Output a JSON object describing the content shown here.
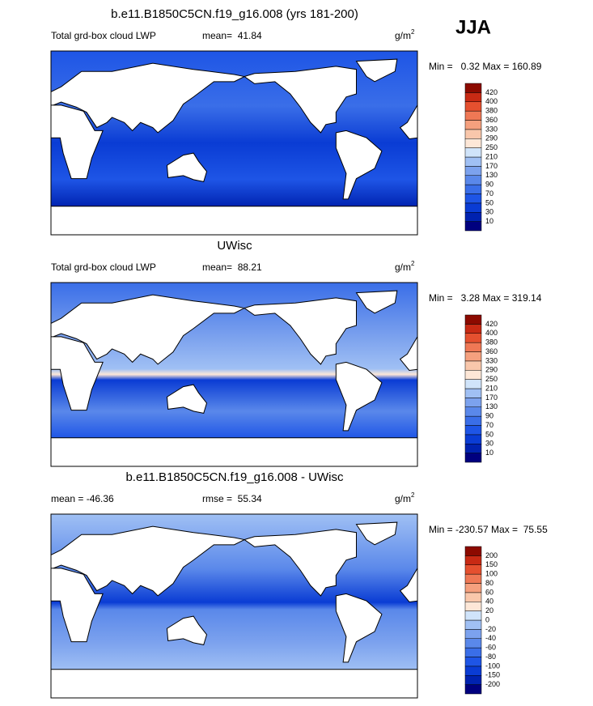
{
  "season": "JJA",
  "panels": [
    {
      "title": "b.e11.B1850C5CN.f19_g16.008 (yrs 181-200)",
      "left_label": "Total grd-box cloud LWP",
      "center_label": "mean=  41.84",
      "units": {
        "base": "g/m",
        "sup": "2"
      },
      "range_label": "Min =   0.32 Max = 160.89",
      "colorbar": {
        "levels": [
          10,
          30,
          50,
          70,
          90,
          130,
          170,
          210,
          250,
          290,
          330,
          360,
          380,
          400,
          420
        ],
        "colors": [
          "#00007f",
          "#0022b0",
          "#0a3cd4",
          "#1e55e6",
          "#3a6ee8",
          "#5a88ea",
          "#7ca2ee",
          "#a0c0f4",
          "#d0e4fa",
          "#fde7d7",
          "#f9c7ab",
          "#f5a07e",
          "#ef7855",
          "#e5502f",
          "#c82a14",
          "#8c0a00"
        ]
      }
    },
    {
      "title": "UWisc",
      "left_label": "Total grd-box cloud LWP",
      "center_label": "mean=  88.21",
      "units": {
        "base": "g/m",
        "sup": "2"
      },
      "range_label": "Min =   3.28 Max = 319.14",
      "colorbar": {
        "levels": [
          10,
          30,
          50,
          70,
          90,
          130,
          170,
          210,
          250,
          290,
          330,
          360,
          380,
          400,
          420
        ],
        "colors": [
          "#00007f",
          "#0022b0",
          "#0a3cd4",
          "#1e55e6",
          "#3a6ee8",
          "#5a88ea",
          "#7ca2ee",
          "#a0c0f4",
          "#d0e4fa",
          "#fde7d7",
          "#f9c7ab",
          "#f5a07e",
          "#ef7855",
          "#e5502f",
          "#c82a14",
          "#8c0a00"
        ]
      }
    },
    {
      "title": "b.e11.B1850C5CN.f19_g16.008 - UWisc",
      "left_label": "mean = -46.36",
      "center_label": "rmse =  55.34",
      "units": {
        "base": "g/m",
        "sup": "2"
      },
      "range_label": "Min = -230.57 Max =  75.55",
      "colorbar": {
        "levels": [
          -200,
          -150,
          -100,
          -80,
          -60,
          -40,
          -20,
          0,
          20,
          40,
          60,
          80,
          100,
          150,
          200
        ],
        "colors": [
          "#00007f",
          "#0022b0",
          "#0a3cd4",
          "#1e55e6",
          "#3a6ee8",
          "#5a88ea",
          "#7ca2ee",
          "#a0c0f4",
          "#d0e4fa",
          "#fde7d7",
          "#f9c7ab",
          "#f5a07e",
          "#ef7855",
          "#e5502f",
          "#c82a14",
          "#8c0a00"
        ]
      }
    }
  ]
}
